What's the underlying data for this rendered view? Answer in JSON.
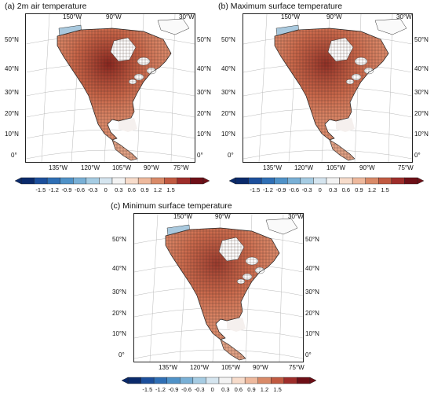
{
  "palette": [
    "#0a2a6b",
    "#1c4f9c",
    "#2f6fb5",
    "#4f92c8",
    "#79b0d6",
    "#a6cce3",
    "#d5e5ef",
    "#f3f3f3",
    "#f7dccb",
    "#eeb99d",
    "#d98a68",
    "#c15a41",
    "#9e2d2a",
    "#6e0f17"
  ],
  "colorbar": {
    "ticks": [
      "-1.5",
      "-1.2",
      "-0.9",
      "-0.6",
      "-0.3",
      "0",
      "0.3",
      "0.6",
      "0.9",
      "1.2",
      "1.5"
    ]
  },
  "axes": {
    "top_lon_labels": [
      "150°W",
      "90°W",
      "30°W"
    ],
    "bottom_lon_labels": [
      "135°W",
      "120°W",
      "105°W",
      "90°W",
      "75°W"
    ],
    "lat_labels": [
      "50°N",
      "40°N",
      "30°N",
      "20°N",
      "10°N",
      "0°"
    ]
  },
  "panels": [
    {
      "title": "(a) 2m air temperature",
      "intensity": 0.85
    },
    {
      "title": "(b) Maximum surface temperature",
      "intensity": 0.75
    },
    {
      "title": "(c) Minimum surface temperature",
      "intensity": 0.65
    }
  ]
}
